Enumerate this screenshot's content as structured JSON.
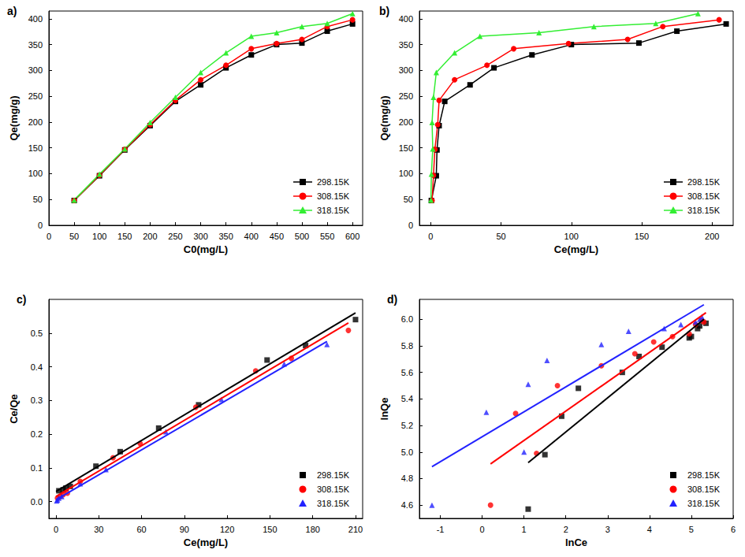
{
  "chart_data": [
    {
      "title": "a)",
      "type": "line",
      "x_label": "C0(mg/L)",
      "y_label": "Qe(mg/g)",
      "xlim": [
        0,
        620
      ],
      "xticks": [
        0,
        50,
        100,
        150,
        200,
        250,
        300,
        350,
        400,
        450,
        500,
        550,
        600
      ],
      "ylim": [
        0,
        415
      ],
      "yticks": [
        0,
        50,
        100,
        150,
        200,
        250,
        300,
        350,
        400
      ],
      "legend": "lower right",
      "series": [
        {
          "name": "298.15K",
          "color": "#000000",
          "marker": "square",
          "x": [
            50,
            100,
            150,
            200,
            250,
            300,
            350,
            400,
            450,
            500,
            550,
            600
          ],
          "values": [
            48,
            96,
            146,
            193,
            240,
            272,
            305,
            330,
            350,
            353,
            376,
            390
          ]
        },
        {
          "name": "308.15K",
          "color": "#ff0000",
          "marker": "circle",
          "x": [
            50,
            100,
            150,
            200,
            250,
            300,
            350,
            400,
            450,
            500,
            550,
            600
          ],
          "values": [
            48,
            97,
            147,
            195,
            242,
            282,
            310,
            342,
            352,
            360,
            385,
            398
          ]
        },
        {
          "name": "318.15K",
          "color": "#33ee33",
          "marker": "triangle",
          "x": [
            50,
            100,
            150,
            200,
            250,
            300,
            350,
            400,
            450,
            500,
            550,
            600
          ],
          "values": [
            49,
            99,
            148,
            199,
            248,
            296,
            334,
            366,
            373,
            385,
            391,
            410
          ]
        }
      ]
    },
    {
      "title": "b)",
      "type": "line",
      "x_label": "Ce(mg/L)",
      "y_label": "Qe(mg/g)",
      "xlim": [
        -8,
        215
      ],
      "xticks": [
        0,
        50,
        100,
        150,
        200
      ],
      "ylim": [
        0,
        415
      ],
      "yticks": [
        0,
        50,
        100,
        150,
        200,
        250,
        300,
        350,
        400
      ],
      "legend": "lower right",
      "series": [
        {
          "name": "298.15K",
          "color": "#000000",
          "marker": "square",
          "x": [
            0.5,
            4,
            4.5,
            6,
            10,
            28,
            45,
            72,
            100,
            148,
            175,
            210
          ],
          "values": [
            48,
            96,
            146,
            193,
            240,
            272,
            305,
            330,
            350,
            353,
            376,
            390
          ]
        },
        {
          "name": "308.15K",
          "color": "#ff0000",
          "marker": "circle",
          "x": [
            1,
            2,
            3,
            5,
            6,
            17,
            40,
            59,
            98,
            140,
            165,
            205
          ],
          "values": [
            48,
            97,
            147,
            195,
            242,
            282,
            310,
            342,
            352,
            360,
            385,
            398
          ]
        },
        {
          "name": "318.15K",
          "color": "#33ee33",
          "marker": "triangle",
          "x": [
            0.2,
            0.5,
            1.5,
            1,
            2,
            4,
            17,
            35,
            77,
            116,
            160,
            190
          ],
          "values": [
            49,
            99,
            148,
            199,
            248,
            296,
            334,
            366,
            373,
            385,
            391,
            410
          ]
        }
      ]
    },
    {
      "title": "c)",
      "type": "scatter",
      "x_label": "Ce(mg/L)",
      "y_label": "Ce/Qe",
      "xlim": [
        -5,
        215
      ],
      "xticks": [
        0,
        30,
        60,
        90,
        120,
        150,
        180,
        210
      ],
      "ylim": [
        -0.05,
        0.6
      ],
      "yticks": [
        {
          "value": 0,
          "label": "0.0"
        },
        0.1,
        0.2,
        0.3,
        0.4,
        0.5
      ],
      "legend": "lower right",
      "series": [
        {
          "name": "298.15K",
          "color": "#000000",
          "marker": "square",
          "x": [
            2,
            5,
            7,
            10,
            28,
            45,
            72,
            100,
            148,
            175,
            210
          ],
          "values": [
            0.032,
            0.035,
            0.04,
            0.045,
            0.105,
            0.148,
            0.218,
            0.287,
            0.42,
            0.463,
            0.54
          ],
          "fit": {
            "x": [
              0,
              210
            ],
            "values": [
              0.03,
              0.56
            ]
          }
        },
        {
          "name": "308.15K",
          "color": "#ff0000",
          "marker": "circle",
          "x": [
            1,
            3,
            5,
            8,
            17,
            40,
            59,
            98,
            140,
            165,
            205
          ],
          "values": [
            0.01,
            0.015,
            0.02,
            0.025,
            0.06,
            0.13,
            0.172,
            0.28,
            0.388,
            0.425,
            0.508
          ],
          "fit": {
            "x": [
              0,
              205
            ],
            "values": [
              0.015,
              0.53
            ]
          }
        },
        {
          "name": "318.15K",
          "color": "#2222ff",
          "marker": "triangle",
          "x": [
            0.5,
            1,
            2,
            4,
            17,
            35,
            77,
            116,
            160,
            190
          ],
          "values": [
            0.002,
            0.005,
            0.01,
            0.015,
            0.053,
            0.095,
            0.207,
            0.303,
            0.408,
            0.466
          ],
          "fit": {
            "x": [
              0,
              190
            ],
            "values": [
              0.005,
              0.475
            ]
          }
        }
      ]
    },
    {
      "title": "d)",
      "type": "scatter",
      "x_label": "lnCe",
      "y_label": "lnQe",
      "xlim": [
        -1.5,
        6
      ],
      "xticks": [
        -1,
        0,
        1,
        2,
        3,
        4,
        5,
        6
      ],
      "ylim": [
        4.5,
        6.15
      ],
      "yticks": [
        4.6,
        4.8,
        {
          "value": 5,
          "label": "5.0"
        },
        5.2,
        5.4,
        5.6,
        5.8,
        {
          "value": 6,
          "label": "6.0"
        }
      ],
      "legend": "lower right",
      "series": [
        {
          "name": "298.15K",
          "color": "#000000",
          "marker": "square",
          "x": [
            1.1,
            1.5,
            1.9,
            2.3,
            3.35,
            3.75,
            4.3,
            4.95,
            5.0,
            5.15,
            5.2,
            5.35
          ],
          "values": [
            4.57,
            4.98,
            5.27,
            5.48,
            5.6,
            5.72,
            5.79,
            5.86,
            5.87,
            5.93,
            5.95,
            5.97
          ],
          "fit": {
            "x": [
              1.1,
              5.3
            ],
            "values": [
              4.92,
              6.0
            ]
          }
        },
        {
          "name": "308.15K",
          "color": "#ff0000",
          "marker": "circle",
          "x": [
            0.2,
            1.3,
            0.8,
            1.8,
            2.85,
            3.65,
            4.1,
            4.55,
            4.95,
            5.1,
            5.25,
            5.3
          ],
          "values": [
            4.6,
            4.99,
            5.29,
            5.5,
            5.65,
            5.74,
            5.83,
            5.87,
            5.89,
            5.96,
            5.99,
            5.98
          ],
          "fit": {
            "x": [
              0.2,
              5.35
            ],
            "values": [
              4.91,
              6.05
            ]
          }
        },
        {
          "name": "318.15K",
          "color": "#2222ff",
          "marker": "triangle",
          "x": [
            -1.2,
            0.1,
            1.0,
            1.1,
            1.55,
            2.85,
            3.5,
            4.35,
            4.75,
            5.1,
            5.2,
            5.25
          ],
          "values": [
            4.6,
            5.3,
            5.0,
            5.51,
            5.69,
            5.81,
            5.91,
            5.93,
            5.96,
            5.98,
            6.0,
            6.02
          ],
          "fit": {
            "x": [
              -1.2,
              5.3
            ],
            "values": [
              4.89,
              6.11
            ]
          }
        }
      ]
    }
  ]
}
